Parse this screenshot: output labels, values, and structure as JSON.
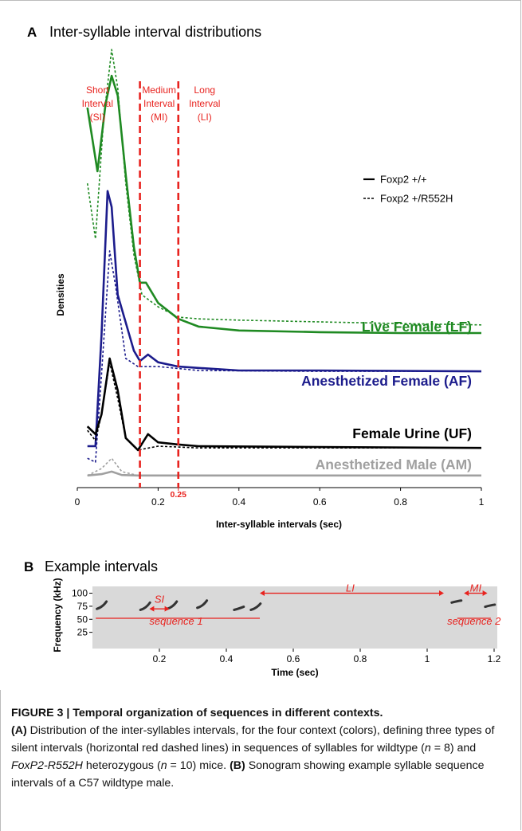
{
  "figure": {
    "panel_a": {
      "type": "line",
      "letter": "A",
      "title": "Inter-syllable interval distributions",
      "x_label": "Inter-syllable intervals (sec)",
      "y_label": "Densities",
      "xlim": [
        0,
        1
      ],
      "xticks": [
        0,
        0.2,
        0.4,
        0.6,
        0.8,
        1
      ],
      "ylim": [
        0,
        100
      ],
      "boundaries": [
        0.155,
        0.25
      ],
      "boundary_color": "#e8231f",
      "interval_labels": [
        [
          "Short",
          "Interval",
          "(SI)"
        ],
        [
          "Medium",
          "Interval",
          "(MI)"
        ],
        [
          "Long",
          "Interval",
          "(LI)"
        ]
      ],
      "legend": [
        {
          "label": "Foxp2 +/+",
          "style": "solid"
        },
        {
          "label": "Foxp2 +/R552H",
          "style": "dashed"
        }
      ],
      "series": [
        {
          "name": "Live Female (LF)",
          "color": "#1f8a22",
          "lines": [
            {
              "x": [
                0.025,
                0.05,
                0.07,
                0.085,
                0.1,
                0.12,
                0.14,
                0.155,
                0.17,
                0.2,
                0.25,
                0.3,
                0.4,
                0.6,
                0.8,
                1.0
              ],
              "values": [
                86.1,
                71.3,
                87.0,
                93.5,
                88.9,
                70.4,
                53.7,
                45.4,
                45.4,
                40.7,
                37.0,
                35.2,
                34.3,
                33.9,
                33.7,
                33.7
              ]
            },
            {
              "x": [
                0.025,
                0.045,
                0.065,
                0.085,
                0.1,
                0.12,
                0.14,
                0.16,
                0.2,
                0.25,
                0.3,
                0.4,
                0.6,
                0.8,
                1.0
              ],
              "values": [
                68.5,
                55.6,
                83.3,
                99.6,
                90.7,
                68.5,
                51.9,
                42.6,
                39.8,
                37.4,
                37.0,
                36.7,
                36.3,
                35.9,
                35.6
              ]
            }
          ]
        },
        {
          "name": "Anesthetized Female (AF)",
          "color": "#1c1c8c",
          "lines": [
            {
              "x": [
                0.025,
                0.045,
                0.06,
                0.075,
                0.085,
                0.1,
                0.14,
                0.155,
                0.175,
                0.2,
                0.25,
                0.3,
                0.4,
                0.6,
                1.0
              ],
              "values": [
                7.4,
                7.4,
                33.3,
                66.7,
                63.0,
                42.6,
                29.6,
                27.2,
                28.7,
                26.9,
                25.9,
                25.6,
                25.0,
                25.0,
                24.8
              ]
            },
            {
              "x": [
                0.025,
                0.045,
                0.06,
                0.08,
                0.095,
                0.12,
                0.15,
                0.2,
                0.3,
                0.6,
                1.0
              ],
              "values": [
                4.6,
                3.7,
                24.1,
                52.8,
                44.4,
                27.8,
                25.9,
                25.9,
                25.0,
                24.8,
                24.8
              ]
            }
          ]
        },
        {
          "name": "Female Urine (UF)",
          "color": "#000000",
          "lines": [
            {
              "x": [
                0.025,
                0.045,
                0.06,
                0.08,
                0.1,
                0.12,
                0.15,
                0.175,
                0.2,
                0.25,
                0.3,
                0.6,
                1.0
              ],
              "values": [
                12.0,
                10.2,
                14.8,
                27.8,
                20.4,
                9.3,
                6.5,
                10.2,
                8.3,
                7.8,
                7.4,
                7.2,
                7.0
              ]
            },
            {
              "x": [
                0.025,
                0.045,
                0.06,
                0.08,
                0.1,
                0.12,
                0.15,
                0.2,
                0.3,
                1.0
              ],
              "values": [
                11.1,
                8.7,
                14.8,
                26.9,
                18.5,
                9.3,
                6.5,
                7.4,
                7.0,
                7.0
              ]
            }
          ]
        },
        {
          "name": "Anesthetized Male (AM)",
          "color": "#a0a0a0",
          "lines": [
            {
              "x": [
                0.025,
                0.06,
                0.085,
                0.11,
                0.15,
                1.0
              ],
              "values": [
                0.6,
                0.9,
                1.5,
                0.7,
                0.6,
                0.6
              ]
            },
            {
              "x": [
                0.025,
                0.06,
                0.085,
                0.11,
                0.15,
                1.0
              ],
              "values": [
                0.6,
                2.2,
                4.6,
                1.5,
                0.6,
                0.6
              ]
            }
          ]
        }
      ]
    },
    "panel_b": {
      "type": "sonogram",
      "letter": "B",
      "title": "Example intervals",
      "x_label": "Time (sec)",
      "y_label": "Frequency (kHz)",
      "xlim": [
        0,
        1.2
      ],
      "xticks": [
        0.2,
        0.4,
        0.6,
        0.8,
        1.0,
        1.2
      ],
      "ylim": [
        0,
        110
      ],
      "yticks": [
        25,
        50,
        75,
        100
      ],
      "annotations": [
        "SI",
        "LI",
        "MI",
        "sequence 1",
        "sequence 2"
      ]
    }
  },
  "caption": {
    "title": "FIGURE 3 | Temporal organization of sequences in different contexts.",
    "parts": [
      "(A)",
      " Distribution of the inter-syllables intervals, for the four context (colors), defining three types of silent intervals (horizontal red dashed lines) in sequences of syllables for wildtype (",
      "n",
      " = 8) and ",
      "FoxP2-R552H",
      " heterozygous (",
      "n",
      " = 10) mice. ",
      "(B)",
      " Sonogram showing example syllable sequence intervals of a C57 wildtype male."
    ]
  }
}
